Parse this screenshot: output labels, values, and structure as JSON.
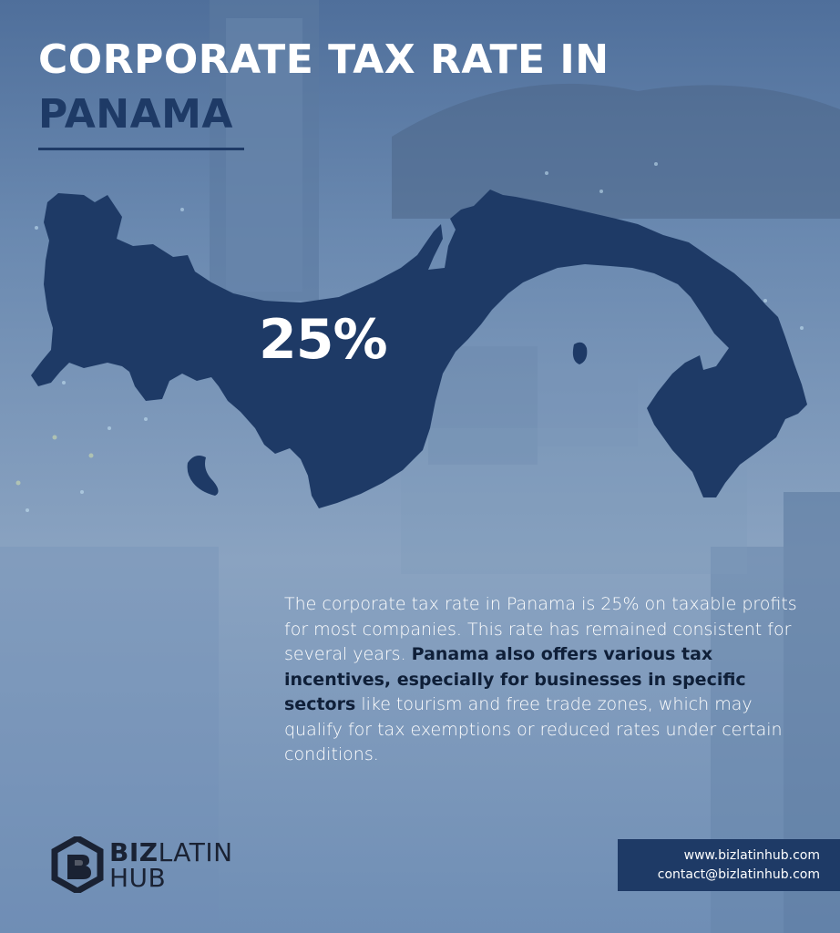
{
  "title": {
    "line1": "CORPORATE TAX RATE IN",
    "line2": "PANAMA"
  },
  "map": {
    "rate": "25%",
    "fill_color": "#1e3a66"
  },
  "description": {
    "part1": "The corporate tax rate in Panama is 25% on taxable profits for most companies. This rate has remained consistent for several years. ",
    "bold": "Panama also offers various tax incentives, especially for businesses in specific sectors",
    "part2": " like tourism and free trade zones, which may qualify for tax exemptions or reduced rates under certain conditions."
  },
  "brand": {
    "word1": "BIZ",
    "word2": "LATIN",
    "word3": "HUB"
  },
  "contact": {
    "website": "www.bizlatinhub.com",
    "email": "contact@bizlatinhub.com"
  }
}
